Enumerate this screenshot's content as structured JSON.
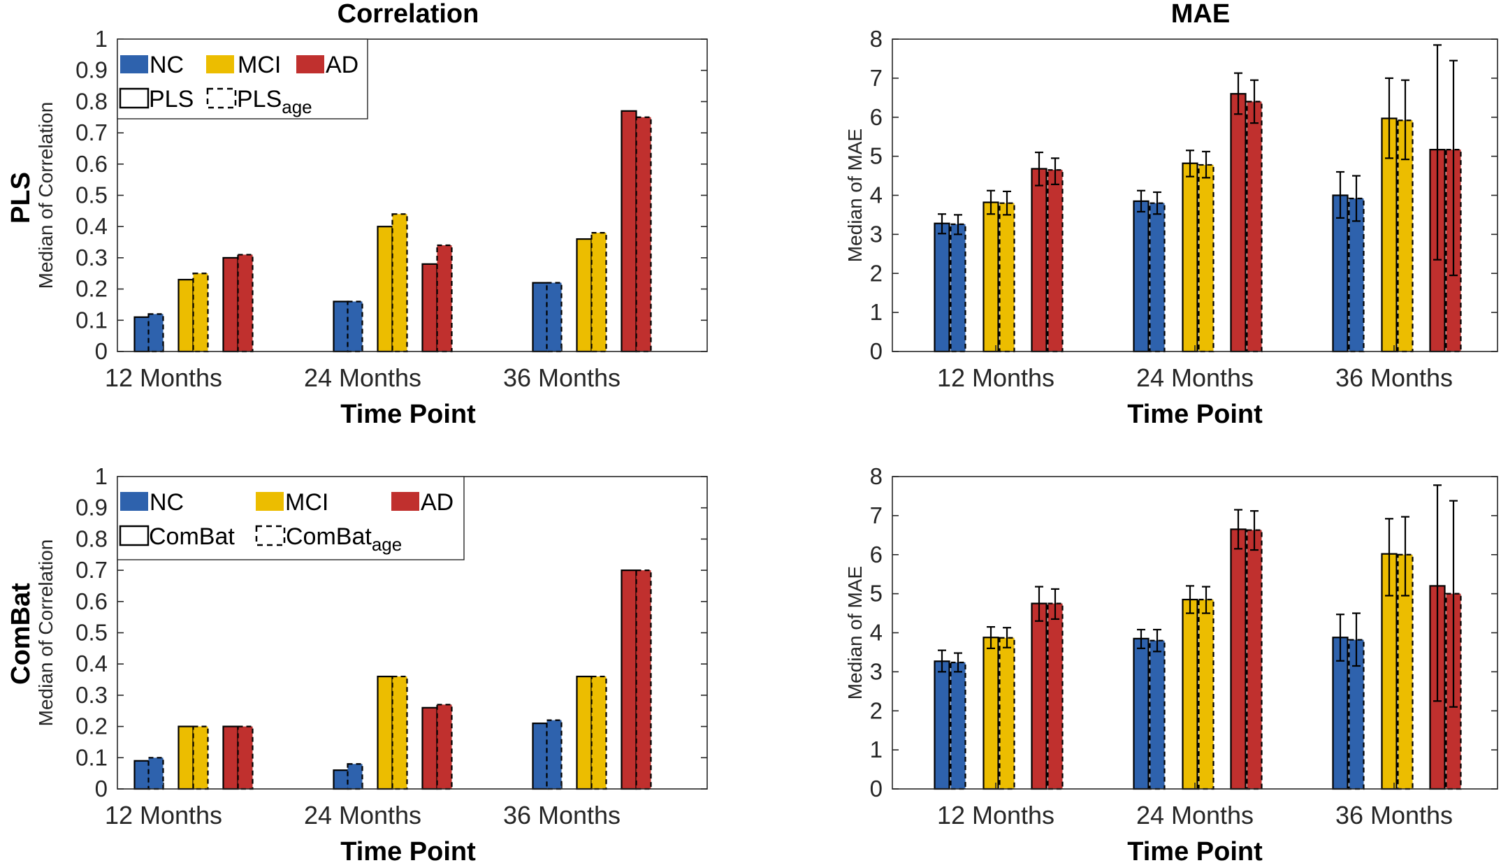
{
  "figure": {
    "row_labels": [
      "PLS",
      "ComBat"
    ],
    "col_titles": [
      "Correlation",
      "MAE"
    ]
  },
  "colors": {
    "NC": "#2e62ad",
    "MCI": "#ecbd00",
    "AD": "#c0302e",
    "edge": "#000000"
  },
  "chart_data": [
    {
      "id": "pls-correlation",
      "type": "bar",
      "title": "Correlation",
      "row_label": "PLS",
      "xlabel": "Time Point",
      "ylabel": "Median of Correlation",
      "ylim": [
        0,
        1
      ],
      "yticks": [
        0,
        0.1,
        0.2,
        0.3,
        0.4,
        0.5,
        0.6,
        0.7,
        0.8,
        0.9,
        1
      ],
      "categories": [
        "12 Months",
        "24 Months",
        "36 Months"
      ],
      "series": [
        {
          "name": "NC",
          "group": "NC",
          "style": "solid",
          "values": [
            0.11,
            0.16,
            0.22
          ]
        },
        {
          "name": "NC",
          "group": "NC",
          "style": "dashed",
          "values": [
            0.12,
            0.16,
            0.22
          ]
        },
        {
          "name": "MCI",
          "group": "MCI",
          "style": "solid",
          "values": [
            0.23,
            0.4,
            0.36
          ]
        },
        {
          "name": "MCI",
          "group": "MCI",
          "style": "dashed",
          "values": [
            0.25,
            0.44,
            0.38
          ]
        },
        {
          "name": "AD",
          "group": "AD",
          "style": "solid",
          "values": [
            0.3,
            0.28,
            0.77
          ]
        },
        {
          "name": "AD",
          "group": "AD",
          "style": "dashed",
          "values": [
            0.31,
            0.34,
            0.75
          ]
        }
      ],
      "legend": {
        "groups": [
          "NC",
          "MCI",
          "AD"
        ],
        "solid_label": "PLS",
        "dashed_label": "PLS",
        "dashed_sub": "age",
        "placement": "top-left"
      }
    },
    {
      "id": "pls-mae",
      "type": "bar",
      "title": "MAE",
      "xlabel": "Time Point",
      "ylabel": "Median of MAE",
      "ylim": [
        0,
        8
      ],
      "yticks": [
        0,
        1,
        2,
        3,
        4,
        5,
        6,
        7,
        8
      ],
      "categories": [
        "12 Months",
        "24 Months",
        "36 Months"
      ],
      "series": [
        {
          "name": "NC",
          "group": "NC",
          "style": "solid",
          "values": [
            3.28,
            3.85,
            4.0
          ],
          "err_low": [
            3.02,
            3.58,
            3.42
          ],
          "err_high": [
            3.52,
            4.12,
            4.6
          ]
        },
        {
          "name": "NC",
          "group": "NC",
          "style": "dashed",
          "values": [
            3.26,
            3.8,
            3.92
          ],
          "err_low": [
            3.0,
            3.52,
            3.34
          ],
          "err_high": [
            3.5,
            4.08,
            4.5
          ]
        },
        {
          "name": "MCI",
          "group": "MCI",
          "style": "solid",
          "values": [
            3.82,
            4.82,
            5.97
          ],
          "err_low": [
            3.52,
            4.48,
            4.95
          ],
          "err_high": [
            4.12,
            5.15,
            7.0
          ]
        },
        {
          "name": "MCI",
          "group": "MCI",
          "style": "dashed",
          "values": [
            3.8,
            4.78,
            5.92
          ],
          "err_low": [
            3.5,
            4.45,
            4.92
          ],
          "err_high": [
            4.1,
            5.12,
            6.95
          ]
        },
        {
          "name": "AD",
          "group": "AD",
          "style": "solid",
          "values": [
            4.68,
            6.6,
            5.17
          ],
          "err_low": [
            4.25,
            6.08,
            2.35
          ],
          "err_high": [
            5.1,
            7.13,
            7.85
          ]
        },
        {
          "name": "AD",
          "group": "AD",
          "style": "dashed",
          "values": [
            4.65,
            6.4,
            5.17
          ],
          "err_low": [
            4.28,
            5.85,
            1.95
          ],
          "err_high": [
            4.95,
            6.95,
            7.45
          ]
        }
      ]
    },
    {
      "id": "combat-correlation",
      "type": "bar",
      "row_label": "ComBat",
      "xlabel": "Time Point",
      "ylabel": "Median of Correlation",
      "ylim": [
        0,
        1
      ],
      "yticks": [
        0,
        0.1,
        0.2,
        0.3,
        0.4,
        0.5,
        0.6,
        0.7,
        0.8,
        0.9,
        1
      ],
      "categories": [
        "12 Months",
        "24 Months",
        "36 Months"
      ],
      "series": [
        {
          "name": "NC",
          "group": "NC",
          "style": "solid",
          "values": [
            0.09,
            0.06,
            0.21
          ]
        },
        {
          "name": "NC",
          "group": "NC",
          "style": "dashed",
          "values": [
            0.1,
            0.08,
            0.22
          ]
        },
        {
          "name": "MCI",
          "group": "MCI",
          "style": "solid",
          "values": [
            0.2,
            0.36,
            0.36
          ]
        },
        {
          "name": "MCI",
          "group": "MCI",
          "style": "dashed",
          "values": [
            0.2,
            0.36,
            0.36
          ]
        },
        {
          "name": "AD",
          "group": "AD",
          "style": "solid",
          "values": [
            0.2,
            0.26,
            0.7
          ]
        },
        {
          "name": "AD",
          "group": "AD",
          "style": "dashed",
          "values": [
            0.2,
            0.27,
            0.7
          ]
        }
      ],
      "legend": {
        "groups": [
          "NC",
          "MCI",
          "AD"
        ],
        "solid_label": "ComBat",
        "dashed_label": "ComBat",
        "dashed_sub": "age",
        "placement": "top-left"
      }
    },
    {
      "id": "combat-mae",
      "type": "bar",
      "xlabel": "Time Point",
      "ylabel": "Median of MAE",
      "ylim": [
        0,
        8
      ],
      "yticks": [
        0,
        1,
        2,
        3,
        4,
        5,
        6,
        7,
        8
      ],
      "categories": [
        "12 Months",
        "24 Months",
        "36 Months"
      ],
      "series": [
        {
          "name": "NC",
          "group": "NC",
          "style": "solid",
          "values": [
            3.27,
            3.85,
            3.88
          ],
          "err_low": [
            3.0,
            3.6,
            3.28
          ],
          "err_high": [
            3.55,
            4.08,
            4.47
          ]
        },
        {
          "name": "NC",
          "group": "NC",
          "style": "dashed",
          "values": [
            3.24,
            3.8,
            3.82
          ],
          "err_low": [
            3.0,
            3.52,
            3.15
          ],
          "err_high": [
            3.48,
            4.08,
            4.5
          ]
        },
        {
          "name": "MCI",
          "group": "MCI",
          "style": "solid",
          "values": [
            3.88,
            4.85,
            6.02
          ],
          "err_low": [
            3.6,
            4.5,
            4.95
          ],
          "err_high": [
            4.15,
            5.2,
            6.92
          ]
        },
        {
          "name": "MCI",
          "group": "MCI",
          "style": "dashed",
          "values": [
            3.87,
            4.85,
            6.0
          ],
          "err_low": [
            3.62,
            4.5,
            4.95
          ],
          "err_high": [
            4.13,
            5.18,
            6.97
          ]
        },
        {
          "name": "AD",
          "group": "AD",
          "style": "solid",
          "values": [
            4.75,
            6.65,
            5.2
          ],
          "err_low": [
            4.3,
            6.15,
            2.25
          ],
          "err_high": [
            5.18,
            7.15,
            7.78
          ]
        },
        {
          "name": "AD",
          "group": "AD",
          "style": "dashed",
          "values": [
            4.75,
            6.63,
            5.0
          ],
          "err_low": [
            4.35,
            6.12,
            2.1
          ],
          "err_high": [
            5.12,
            7.12,
            7.38
          ]
        }
      ]
    }
  ]
}
